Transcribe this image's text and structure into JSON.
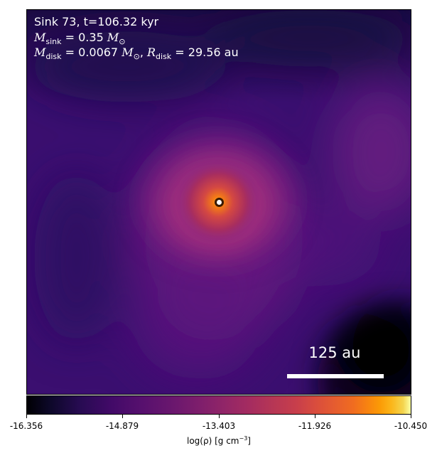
{
  "header": {
    "sink_line": "Sink 73, t=106.32 kyr",
    "msink_symbol": "M",
    "msink_sub": "sink",
    "msink_value": "= 0.35",
    "msink_unit": "M",
    "msink_unit_sub": "⊙",
    "mdisk_symbol": "M",
    "mdisk_sub": "disk",
    "mdisk_value": "= 0.0067",
    "mdisk_unit": "M",
    "mdisk_unit_sub": "⊙",
    "rdisk_symbol": "R",
    "rdisk_sub": "disk",
    "rdisk_value": "= 29.56",
    "rdisk_unit": "au"
  },
  "scale_bar": {
    "label": "125 au"
  },
  "colormap": {
    "name": "inferno",
    "background_color": "#2a0a5c",
    "bright_color": "#fcffa4",
    "dark_color": "#000004"
  },
  "colorbar": {
    "tick_labels": [
      "-16.356",
      "-14.879",
      "-13.403",
      "-11.926",
      "-10.450"
    ],
    "label_prefix": "log(ρ) [g cm",
    "label_exponent": "−3",
    "label_suffix": "]"
  }
}
